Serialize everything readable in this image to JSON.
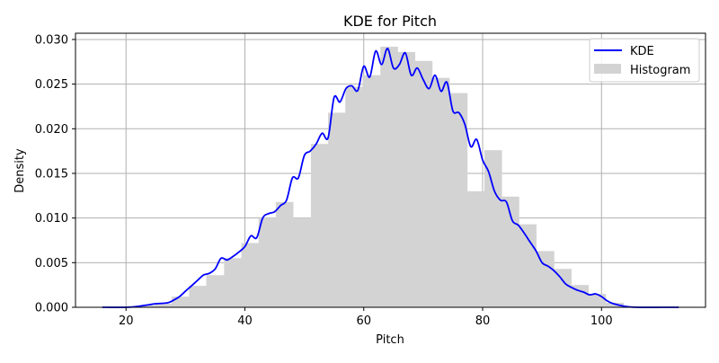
{
  "chart_data": {
    "type": "histogram_kde",
    "title": "KDE for Pitch",
    "xlabel": "Pitch",
    "ylabel": "Density",
    "xlim": [
      11.5,
      117.5
    ],
    "ylim": [
      0,
      0.0307
    ],
    "grid": true,
    "legend_position": "top-right",
    "x_ticks": [
      20,
      40,
      60,
      80,
      100
    ],
    "x_tick_labels": [
      "20",
      "40",
      "60",
      "80",
      "100"
    ],
    "y_ticks": [
      0,
      0.005,
      0.01,
      0.015,
      0.02,
      0.025,
      0.03
    ],
    "y_tick_labels": [
      "0.000",
      "0.005",
      "0.010",
      "0.015",
      "0.020",
      "0.025",
      "0.030"
    ],
    "legend": [
      {
        "label": "KDE",
        "kind": "line",
        "color": "#0000ff"
      },
      {
        "label": "Histogram",
        "kind": "patch",
        "color": "#d3d3d3"
      }
    ],
    "histogram": {
      "color": "#d3d3d3",
      "bins": [
        {
          "x0": 16.0,
          "x1": 18.9,
          "value": 0.0
        },
        {
          "x0": 18.9,
          "x1": 21.8,
          "value": 0.0
        },
        {
          "x0": 21.8,
          "x1": 24.8,
          "value": 0.0002
        },
        {
          "x0": 24.8,
          "x1": 27.7,
          "value": 0.0004
        },
        {
          "x0": 27.7,
          "x1": 30.6,
          "value": 0.0012
        },
        {
          "x0": 30.6,
          "x1": 33.5,
          "value": 0.0024
        },
        {
          "x0": 33.5,
          "x1": 36.5,
          "value": 0.0036
        },
        {
          "x0": 36.5,
          "x1": 39.4,
          "value": 0.0055
        },
        {
          "x0": 39.4,
          "x1": 42.3,
          "value": 0.0072
        },
        {
          "x0": 42.3,
          "x1": 45.2,
          "value": 0.01
        },
        {
          "x0": 45.2,
          "x1": 48.1,
          "value": 0.0118
        },
        {
          "x0": 48.1,
          "x1": 51.1,
          "value": 0.01
        },
        {
          "x0": 51.1,
          "x1": 54.0,
          "value": 0.0183
        },
        {
          "x0": 54.0,
          "x1": 56.9,
          "value": 0.0218
        },
        {
          "x0": 56.9,
          "x1": 59.8,
          "value": 0.0247
        },
        {
          "x0": 59.8,
          "x1": 62.8,
          "value": 0.026
        },
        {
          "x0": 62.8,
          "x1": 65.7,
          "value": 0.0292
        },
        {
          "x0": 65.7,
          "x1": 68.6,
          "value": 0.0286
        },
        {
          "x0": 68.6,
          "x1": 71.5,
          "value": 0.0276
        },
        {
          "x0": 71.5,
          "x1": 74.4,
          "value": 0.0257
        },
        {
          "x0": 74.4,
          "x1": 77.4,
          "value": 0.024
        },
        {
          "x0": 77.4,
          "x1": 80.3,
          "value": 0.013
        },
        {
          "x0": 80.3,
          "x1": 83.2,
          "value": 0.0176
        },
        {
          "x0": 83.2,
          "x1": 86.1,
          "value": 0.0124
        },
        {
          "x0": 86.1,
          "x1": 89.0,
          "value": 0.0093
        },
        {
          "x0": 89.0,
          "x1": 92.0,
          "value": 0.0063
        },
        {
          "x0": 92.0,
          "x1": 94.9,
          "value": 0.0043
        },
        {
          "x0": 94.9,
          "x1": 97.8,
          "value": 0.0025
        },
        {
          "x0": 97.8,
          "x1": 100.7,
          "value": 0.0015
        },
        {
          "x0": 100.7,
          "x1": 103.7,
          "value": 0.0005
        },
        {
          "x0": 103.7,
          "x1": 106.6,
          "value": 0.0001
        },
        {
          "x0": 106.6,
          "x1": 109.5,
          "value": 0.0
        },
        {
          "x0": 109.5,
          "x1": 112.4,
          "value": 0.0
        }
      ]
    },
    "kde": {
      "color": "#0000ff",
      "x": [
        16,
        20,
        22,
        24,
        25,
        27,
        28,
        29,
        30,
        31,
        32,
        33,
        34,
        35,
        36,
        37,
        38,
        39,
        40,
        41,
        42,
        43,
        44,
        45,
        46,
        47,
        48,
        49,
        50,
        51,
        52,
        53,
        54,
        55,
        56,
        57,
        58,
        59,
        60,
        61,
        62,
        63,
        64,
        65,
        66,
        67,
        68,
        69,
        70,
        71,
        72,
        73,
        74,
        75,
        76,
        77,
        78,
        79,
        80,
        81,
        82,
        83,
        84,
        85,
        86,
        87,
        88,
        89,
        90,
        91,
        92,
        93,
        94,
        95,
        96,
        97,
        98,
        99,
        100,
        101,
        102,
        104,
        106,
        110,
        113
      ],
      "y": [
        0.0,
        0.0,
        0.0001,
        0.0003,
        0.0004,
        0.0005,
        0.0008,
        0.0012,
        0.0018,
        0.0024,
        0.003,
        0.0036,
        0.0038,
        0.0043,
        0.0055,
        0.0053,
        0.0057,
        0.0062,
        0.0068,
        0.008,
        0.0078,
        0.01,
        0.0105,
        0.0107,
        0.0114,
        0.012,
        0.0145,
        0.0145,
        0.017,
        0.0175,
        0.0183,
        0.0195,
        0.019,
        0.0235,
        0.023,
        0.0245,
        0.0248,
        0.0243,
        0.027,
        0.0258,
        0.0287,
        0.0272,
        0.029,
        0.0268,
        0.0272,
        0.0285,
        0.026,
        0.0268,
        0.0255,
        0.0245,
        0.026,
        0.0242,
        0.0252,
        0.022,
        0.0218,
        0.0205,
        0.018,
        0.0188,
        0.0165,
        0.0152,
        0.013,
        0.012,
        0.0118,
        0.0097,
        0.0092,
        0.0083,
        0.0073,
        0.0063,
        0.005,
        0.0046,
        0.0041,
        0.0034,
        0.0026,
        0.0022,
        0.0019,
        0.0017,
        0.0014,
        0.0015,
        0.0012,
        0.0007,
        0.0004,
        0.0001,
        0.0,
        0.0,
        0.0
      ]
    }
  }
}
